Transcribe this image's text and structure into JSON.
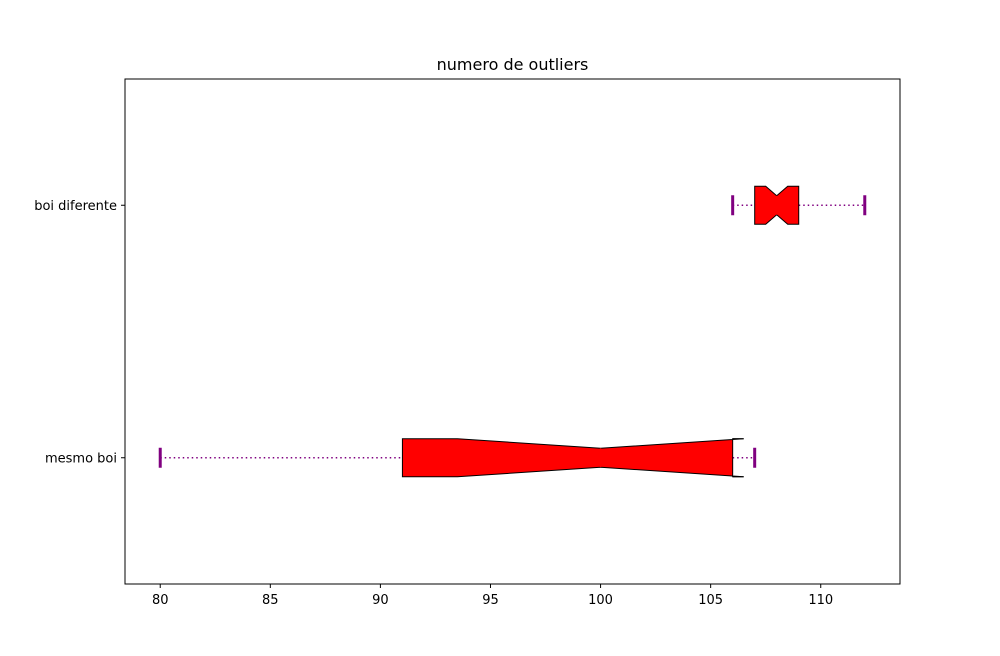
{
  "chart_data": {
    "type": "boxplot",
    "orientation": "horizontal",
    "notched": true,
    "title": "numero de outliers",
    "xlabel": "",
    "ylabel": "",
    "xlim": [
      78.4,
      113.6
    ],
    "x_ticks": [
      80,
      85,
      90,
      95,
      100,
      105,
      110
    ],
    "categories": [
      "mesmo boi",
      "boi diferente"
    ],
    "boxes": [
      {
        "category": "mesmo boi",
        "whisker_low": 80,
        "q1": 91,
        "median": 100,
        "q3": 106,
        "whisker_high": 107,
        "notch_low": 93.5,
        "notch_high": 106.5
      },
      {
        "category": "boi diferente",
        "whisker_low": 106,
        "q1": 107,
        "median": 108,
        "q3": 109,
        "whisker_high": 112,
        "notch_low": 107.5,
        "notch_high": 108.5
      }
    ],
    "colors": {
      "box_fill": "#ff0000",
      "box_edge": "#000000",
      "whisker": "#800080",
      "median": "#ff0000"
    },
    "grid": false,
    "legend": "none"
  }
}
